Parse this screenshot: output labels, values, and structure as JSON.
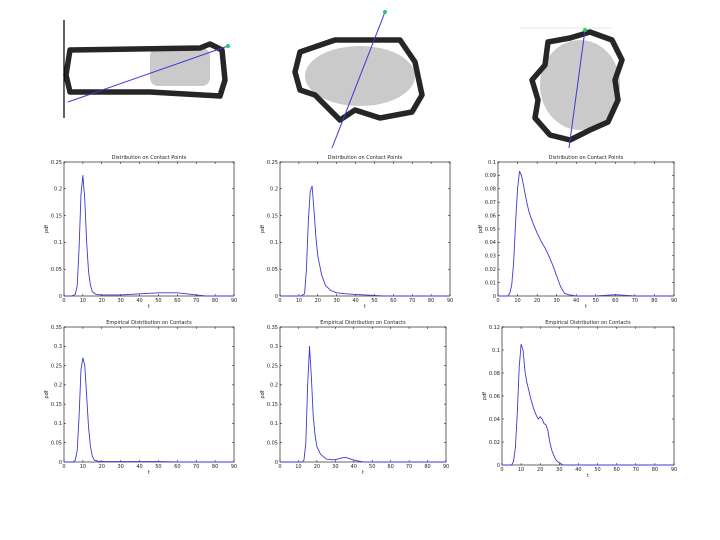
{
  "colors": {
    "curve": "#3a3ad6",
    "axis_marker": "#22cc66",
    "outline": "#262626"
  },
  "images": [
    {
      "name": "shape-rectangle"
    },
    {
      "name": "shape-blob"
    },
    {
      "name": "shape-wavy-circle"
    }
  ],
  "chart_data": [
    {
      "type": "line",
      "title": "Distribution on Contact Points",
      "xlabel": "t",
      "ylabel": "pdf",
      "xlim": [
        0,
        90
      ],
      "ylim": [
        0,
        0.25
      ],
      "xticks": [
        0,
        10,
        20,
        30,
        40,
        50,
        60,
        70,
        80,
        90
      ],
      "yticks": [
        0,
        0.05,
        0.1,
        0.15,
        0.2,
        0.25
      ],
      "x": [
        0,
        4,
        6,
        7,
        8,
        9,
        10,
        11,
        12,
        13,
        14,
        15,
        17,
        20,
        25,
        30,
        35,
        40,
        45,
        50,
        55,
        60,
        65,
        70,
        75,
        80,
        85,
        90
      ],
      "y": [
        0,
        0,
        0.003,
        0.02,
        0.09,
        0.19,
        0.225,
        0.18,
        0.1,
        0.045,
        0.02,
        0.008,
        0.003,
        0.002,
        0.002,
        0.002,
        0.003,
        0.004,
        0.005,
        0.006,
        0.006,
        0.006,
        0.004,
        0.002,
        0,
        0,
        0,
        0
      ]
    },
    {
      "type": "line",
      "title": "Distribution on Contact Points",
      "xlabel": "t",
      "ylabel": "pdf",
      "xlim": [
        0,
        90
      ],
      "ylim": [
        0,
        0.25
      ],
      "xticks": [
        0,
        10,
        20,
        30,
        40,
        50,
        60,
        70,
        80,
        90
      ],
      "yticks": [
        0,
        0.05,
        0.1,
        0.15,
        0.2,
        0.25
      ],
      "x": [
        0,
        11,
        13,
        14,
        15,
        16,
        17,
        18,
        19,
        20,
        22,
        24,
        27,
        30,
        35,
        40,
        45,
        50,
        55,
        60,
        70,
        80,
        90
      ],
      "y": [
        0,
        0,
        0.004,
        0.05,
        0.14,
        0.195,
        0.205,
        0.16,
        0.11,
        0.075,
        0.04,
        0.02,
        0.01,
        0.006,
        0.004,
        0.003,
        0.002,
        0.001,
        0,
        0,
        0,
        0,
        0
      ]
    },
    {
      "type": "line",
      "title": "Distribution on Contact Points",
      "xlabel": "t",
      "ylabel": "pdf",
      "xlim": [
        0,
        90
      ],
      "ylim": [
        0,
        0.1
      ],
      "xticks": [
        0,
        10,
        20,
        30,
        40,
        50,
        60,
        70,
        80,
        90
      ],
      "yticks": [
        0,
        0.01,
        0.02,
        0.03,
        0.04,
        0.05,
        0.06,
        0.07,
        0.08,
        0.09,
        0.1
      ],
      "x": [
        0,
        5,
        6,
        7,
        8,
        9,
        10,
        11,
        12,
        13,
        14,
        15,
        16,
        18,
        20,
        22,
        24,
        26,
        28,
        30,
        32,
        34,
        36,
        40,
        50,
        60,
        70,
        80,
        90
      ],
      "y": [
        0,
        0,
        0.002,
        0.008,
        0.025,
        0.055,
        0.08,
        0.093,
        0.09,
        0.083,
        0.075,
        0.068,
        0.062,
        0.054,
        0.047,
        0.041,
        0.036,
        0.03,
        0.023,
        0.015,
        0.007,
        0.002,
        0.001,
        0,
        0,
        0.001,
        0,
        0,
        0
      ]
    },
    {
      "type": "line",
      "title": "Empirical Distribution on Contacts",
      "xlabel": "t",
      "ylabel": "pdf",
      "xlim": [
        0,
        90
      ],
      "ylim": [
        0,
        0.35
      ],
      "xticks": [
        0,
        10,
        20,
        30,
        40,
        50,
        60,
        70,
        80,
        90
      ],
      "yticks": [
        0,
        0.05,
        0.1,
        0.15,
        0.2,
        0.25,
        0.3,
        0.35
      ],
      "x": [
        0,
        5,
        6,
        7,
        8,
        9,
        10,
        11,
        12,
        13,
        14,
        15,
        16,
        18,
        20,
        25,
        30,
        40,
        50,
        60,
        90
      ],
      "y": [
        0,
        0,
        0.005,
        0.03,
        0.12,
        0.24,
        0.27,
        0.25,
        0.17,
        0.09,
        0.04,
        0.015,
        0.005,
        0.002,
        0.001,
        0.001,
        0.001,
        0.001,
        0.001,
        0,
        0
      ]
    },
    {
      "type": "line",
      "title": "Empirical Distribution on Contacts",
      "xlabel": "t",
      "ylabel": "pdf",
      "xlim": [
        0,
        90
      ],
      "ylim": [
        0,
        0.35
      ],
      "xticks": [
        0,
        10,
        20,
        30,
        40,
        50,
        60,
        70,
        80,
        90
      ],
      "yticks": [
        0,
        0.05,
        0.1,
        0.15,
        0.2,
        0.25,
        0.3,
        0.35
      ],
      "x": [
        0,
        12,
        13,
        14,
        15,
        16,
        17,
        18,
        19,
        20,
        22,
        25,
        28,
        30,
        33,
        35,
        37,
        40,
        45,
        50,
        90
      ],
      "y": [
        0,
        0,
        0.005,
        0.05,
        0.2,
        0.3,
        0.22,
        0.12,
        0.07,
        0.04,
        0.02,
        0.008,
        0.006,
        0.006,
        0.01,
        0.012,
        0.01,
        0.005,
        0,
        0,
        0
      ]
    },
    {
      "type": "line",
      "title": "Empirical Distribution on Contacts",
      "xlabel": "t",
      "ylabel": "pdf",
      "xlim": [
        0,
        90
      ],
      "ylim": [
        0,
        0.12
      ],
      "xticks": [
        0,
        10,
        20,
        30,
        40,
        50,
        60,
        70,
        80,
        90
      ],
      "yticks": [
        0,
        0.02,
        0.04,
        0.06,
        0.08,
        0.1,
        0.12
      ],
      "x": [
        0,
        5,
        6,
        7,
        8,
        9,
        10,
        11,
        12,
        13,
        14,
        15,
        16,
        17,
        18,
        19,
        20,
        21,
        22,
        23,
        24,
        25,
        26,
        27,
        28,
        29,
        30,
        31,
        32,
        35,
        40,
        90
      ],
      "y": [
        0,
        0,
        0.003,
        0.015,
        0.045,
        0.085,
        0.105,
        0.1,
        0.082,
        0.072,
        0.065,
        0.058,
        0.052,
        0.047,
        0.043,
        0.04,
        0.042,
        0.04,
        0.036,
        0.035,
        0.03,
        0.02,
        0.013,
        0.009,
        0.005,
        0.003,
        0.002,
        0.001,
        0,
        0,
        0,
        0
      ]
    }
  ]
}
